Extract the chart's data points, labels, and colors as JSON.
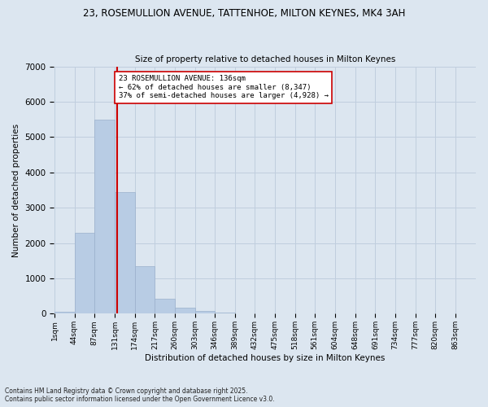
{
  "title_line1": "23, ROSEMULLION AVENUE, TATTENHOE, MILTON KEYNES, MK4 3AH",
  "title_line2": "Size of property relative to detached houses in Milton Keynes",
  "xlabel": "Distribution of detached houses by size in Milton Keynes",
  "ylabel": "Number of detached properties",
  "bins": [
    "1sqm",
    "44sqm",
    "87sqm",
    "131sqm",
    "174sqm",
    "217sqm",
    "260sqm",
    "303sqm",
    "346sqm",
    "389sqm",
    "432sqm",
    "475sqm",
    "518sqm",
    "561sqm",
    "604sqm",
    "648sqm",
    "691sqm",
    "734sqm",
    "777sqm",
    "820sqm",
    "863sqm"
  ],
  "bin_edges": [
    1,
    44,
    87,
    131,
    174,
    217,
    260,
    303,
    346,
    389,
    432,
    475,
    518,
    561,
    604,
    648,
    691,
    734,
    777,
    820,
    863
  ],
  "bar_heights": [
    50,
    2300,
    5500,
    3450,
    1350,
    430,
    170,
    80,
    30,
    10,
    5,
    3,
    2,
    1,
    1,
    1,
    1,
    1,
    0,
    0,
    0
  ],
  "bar_color": "#b8cce4",
  "bar_edge_color": "#9ab0cc",
  "grid_color": "#c0cede",
  "background_color": "#dce6f0",
  "property_line_x": 136,
  "property_line_color": "#cc0000",
  "annotation_text": "23 ROSEMULLION AVENUE: 136sqm\n← 62% of detached houses are smaller (8,347)\n37% of semi-detached houses are larger (4,928) →",
  "annotation_box_color": "#ffffff",
  "annotation_box_edge": "#cc0000",
  "ylim": [
    0,
    7000
  ],
  "yticks": [
    0,
    1000,
    2000,
    3000,
    4000,
    5000,
    6000,
    7000
  ],
  "footer_line1": "Contains HM Land Registry data © Crown copyright and database right 2025.",
  "footer_line2": "Contains public sector information licensed under the Open Government Licence v3.0."
}
